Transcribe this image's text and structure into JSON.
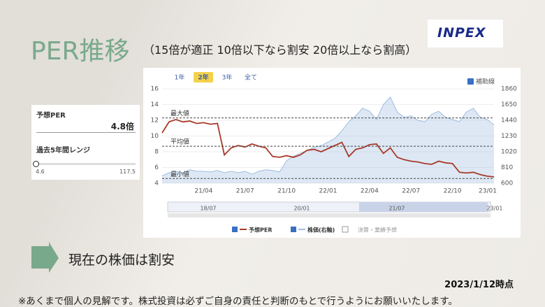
{
  "slide": {
    "title": "PER推移",
    "subtitle": "（15倍が適正 10倍以下なら割安 20倍以上なら割高）",
    "logo": "INPEX",
    "panel": {
      "per_label": "予想PER",
      "current": 4.8,
      "current_label": "4.8倍",
      "range_label": "過去5年間レンジ",
      "range_min": 4.6,
      "range_max": 117.5
    },
    "conclusion": "現在の株価は割安",
    "as_of": "2023/1/12時点",
    "footer": "※あくまで個人の見解です。株式投資は必ずご自身の責任と判断のもとで行うようにお願いいたします。"
  },
  "chart_data": {
    "type": "line",
    "tabs": [
      "1年",
      "2年",
      "3年",
      "全て"
    ],
    "selected_tab": 1,
    "aux_label": "補助線",
    "categories": [
      null,
      null,
      null,
      null,
      null,
      null,
      "21/04",
      null,
      null,
      null,
      null,
      null,
      "21/07",
      null,
      null,
      null,
      null,
      null,
      "21/10",
      null,
      null,
      null,
      null,
      null,
      "22/01",
      null,
      null,
      null,
      null,
      null,
      "22/04",
      null,
      null,
      null,
      null,
      null,
      "22/07",
      null,
      null,
      null,
      null,
      null,
      "22/10",
      null,
      null,
      null,
      null,
      null,
      "23/01"
    ],
    "series": [
      {
        "name": "株価(右軸)",
        "color": "#9fbde0",
        "axis": "y2",
        "values": [
          700,
          740,
          760,
          740,
          780,
          760,
          760,
          750,
          770,
          740,
          760,
          740,
          760,
          720,
          760,
          780,
          770,
          750,
          900,
          960,
          1000,
          1040,
          1080,
          1100,
          1150,
          1200,
          1300,
          1420,
          1500,
          1600,
          1560,
          1450,
          1650,
          1750,
          1550,
          1480,
          1500,
          1440,
          1420,
          1520,
          1560,
          1480,
          1450,
          1420,
          1550,
          1600,
          1480,
          1450,
          1380
        ]
      },
      {
        "name": "予想PER",
        "color": "#a83a2a",
        "values": [
          10.4,
          11.8,
          12.1,
          11.8,
          11.9,
          11.6,
          11.7,
          11.5,
          11.6,
          7.6,
          8.5,
          8.8,
          8.6,
          9.0,
          8.7,
          8.5,
          7.4,
          7.3,
          7.5,
          7.3,
          7.6,
          8.2,
          8.3,
          8.0,
          8.4,
          8.8,
          9.2,
          7.4,
          8.3,
          8.5,
          8.9,
          9.0,
          7.8,
          8.5,
          7.3,
          7.0,
          6.8,
          6.7,
          6.5,
          6.4,
          6.8,
          6.6,
          6.5,
          5.4,
          5.3,
          5.4,
          5.1,
          4.9,
          4.8
        ]
      }
    ],
    "ref_lines": [
      {
        "label": "最大値",
        "value": 12.3
      },
      {
        "label": "平均値",
        "value": 8.7
      },
      {
        "label": "最小値",
        "value": 4.6
      }
    ],
    "ylim": [
      4,
      16
    ],
    "yticks": [
      4,
      6,
      8,
      10,
      12,
      14,
      16
    ],
    "y2lim": [
      600,
      1860
    ],
    "y2ticks": [
      600,
      810,
      1020,
      1230,
      1440,
      1650,
      1860
    ],
    "grid": true,
    "navigator_labels": [
      "18/07",
      "20/01",
      "21/07",
      "23/01"
    ],
    "extra_legend": "決算・業績予想"
  }
}
